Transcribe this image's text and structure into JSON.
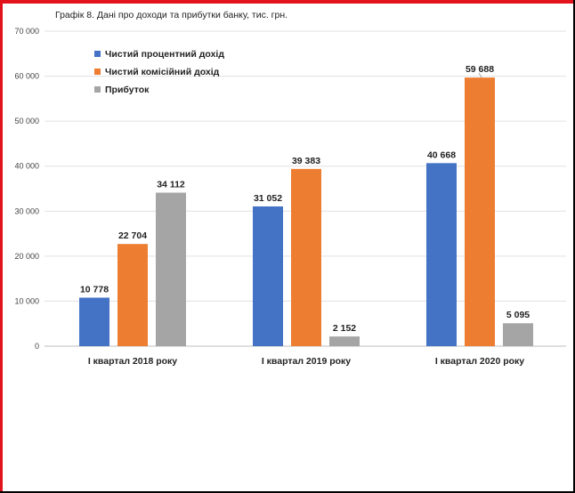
{
  "chart_data": {
    "type": "bar",
    "title": "Графік 8. Дані про доходи та прибутки банку, тис. грн.",
    "categories": [
      "І квартал 2018 року",
      "І квартал 2019 року",
      "І квартал 2020 року"
    ],
    "series": [
      {
        "name": "Чистий процентний дохід",
        "color": "#4472c4",
        "values": [
          10778,
          31052,
          40668
        ],
        "labels": [
          "10 778",
          "31 052",
          "40 668"
        ]
      },
      {
        "name": "Чистий комісійний дохід",
        "color": "#ed7d31",
        "values": [
          22704,
          39383,
          59688
        ],
        "labels": [
          "22 704",
          "39 383",
          "59 688"
        ]
      },
      {
        "name": "Прибуток",
        "color": "#a5a5a5",
        "values": [
          34112,
          2152,
          5095
        ],
        "labels": [
          "34 112",
          "2 152",
          "5 095"
        ]
      }
    ],
    "ylim": [
      0,
      70000
    ],
    "yticks": [
      0,
      10000,
      20000,
      30000,
      40000,
      50000,
      60000,
      70000
    ],
    "ytick_labels": [
      "0",
      "10 000",
      "20 000",
      "30 000",
      "40 000",
      "50 000",
      "60 000",
      "70 000"
    ],
    "grid": true,
    "legend": "top-left"
  }
}
